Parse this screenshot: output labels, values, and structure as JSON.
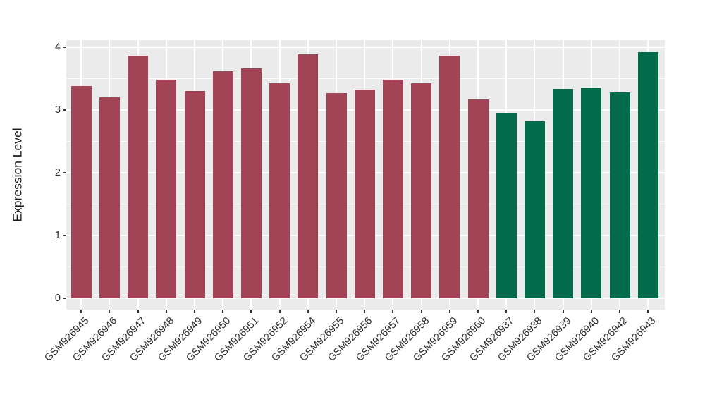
{
  "style": {
    "figure_background": "#FFFFFF",
    "panel_background": "#EBEBEB",
    "grid_color": "#FFFFFF",
    "tick_color": "#333333",
    "tick_label_color": "#2B2B2B",
    "axis_title_color": "#1A1A1A",
    "bar_color_left_group": "#A04456",
    "bar_color_right_group": "#016B4C"
  },
  "chart_data": {
    "type": "bar",
    "title": "",
    "xlabel": "",
    "ylabel": "Expression Level",
    "ylim": [
      0,
      4.12
    ],
    "yticks": [
      0,
      1,
      2,
      3,
      4
    ],
    "yticks_minor": [
      0.5,
      1.5,
      2.5,
      3.5
    ],
    "grid": "major and minor horizontal white lines, vertical white lines at each category, gray panel",
    "legend": "none",
    "x_label_rotation_deg": 45,
    "categories": [
      "GSM926945",
      "GSM926946",
      "GSM926947",
      "GSM926948",
      "GSM926949",
      "GSM926950",
      "GSM926951",
      "GSM926952",
      "GSM926954",
      "GSM926955",
      "GSM926956",
      "GSM926957",
      "GSM926958",
      "GSM926959",
      "GSM926960",
      "GSM926937",
      "GSM926938",
      "GSM926939",
      "GSM926940",
      "GSM926942",
      "GSM926943"
    ],
    "values": [
      3.38,
      3.2,
      3.86,
      3.48,
      3.3,
      3.62,
      3.66,
      3.43,
      3.89,
      3.27,
      3.33,
      3.48,
      3.43,
      3.87,
      3.17,
      2.95,
      2.82,
      3.34,
      3.35,
      3.28,
      3.92
    ],
    "colors": [
      "#A04456",
      "#A04456",
      "#A04456",
      "#A04456",
      "#A04456",
      "#A04456",
      "#A04456",
      "#A04456",
      "#A04456",
      "#A04456",
      "#A04456",
      "#A04456",
      "#A04456",
      "#A04456",
      "#A04456",
      "#016B4C",
      "#016B4C",
      "#016B4C",
      "#016B4C",
      "#016B4C",
      "#016B4C"
    ]
  }
}
